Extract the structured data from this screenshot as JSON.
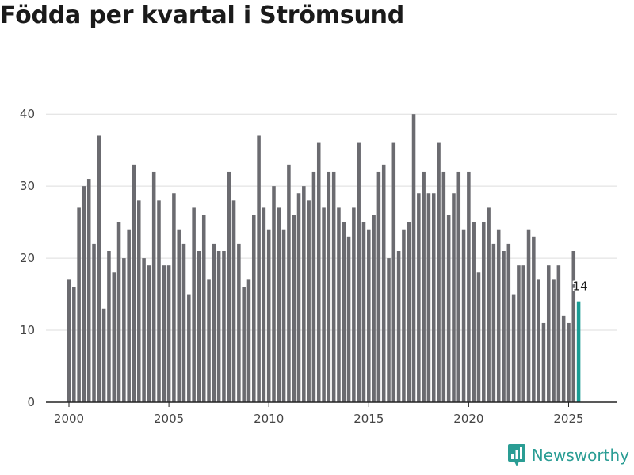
{
  "chart_data": {
    "type": "bar",
    "title": "Födda per kvartal i Strömsund",
    "xlabel": "",
    "ylabel": "",
    "x_start": 2000,
    "x_step": 0.25,
    "x_ticks": [
      2000,
      2005,
      2010,
      2015,
      2020,
      2025
    ],
    "xlim": [
      1998.85,
      2027.4
    ],
    "ylim": [
      0,
      42
    ],
    "y_ticks": [
      0,
      10,
      20,
      30,
      40
    ],
    "grid": true,
    "values": [
      17,
      16,
      27,
      30,
      31,
      22,
      37,
      13,
      21,
      18,
      25,
      20,
      24,
      33,
      28,
      20,
      19,
      32,
      28,
      19,
      19,
      29,
      24,
      22,
      15,
      27,
      21,
      26,
      17,
      22,
      21,
      21,
      32,
      28,
      22,
      16,
      17,
      26,
      37,
      27,
      24,
      30,
      27,
      24,
      33,
      26,
      29,
      30,
      28,
      32,
      36,
      27,
      32,
      32,
      27,
      25,
      23,
      27,
      36,
      25,
      24,
      26,
      32,
      33,
      20,
      36,
      21,
      24,
      25,
      40,
      29,
      32,
      29,
      29,
      36,
      32,
      26,
      29,
      32,
      24,
      32,
      25,
      18,
      25,
      27,
      22,
      24,
      21,
      22,
      15,
      19,
      19,
      24,
      23,
      17,
      11,
      19,
      17,
      19,
      12,
      11,
      21,
      14
    ],
    "highlight_color": "#1a9c94",
    "bar_color": "#6b6b70",
    "last_value_label": "14"
  },
  "brand": {
    "name": "Newsworthy",
    "icon": "bar-chart-badge-icon",
    "color": "#2a9d94"
  }
}
